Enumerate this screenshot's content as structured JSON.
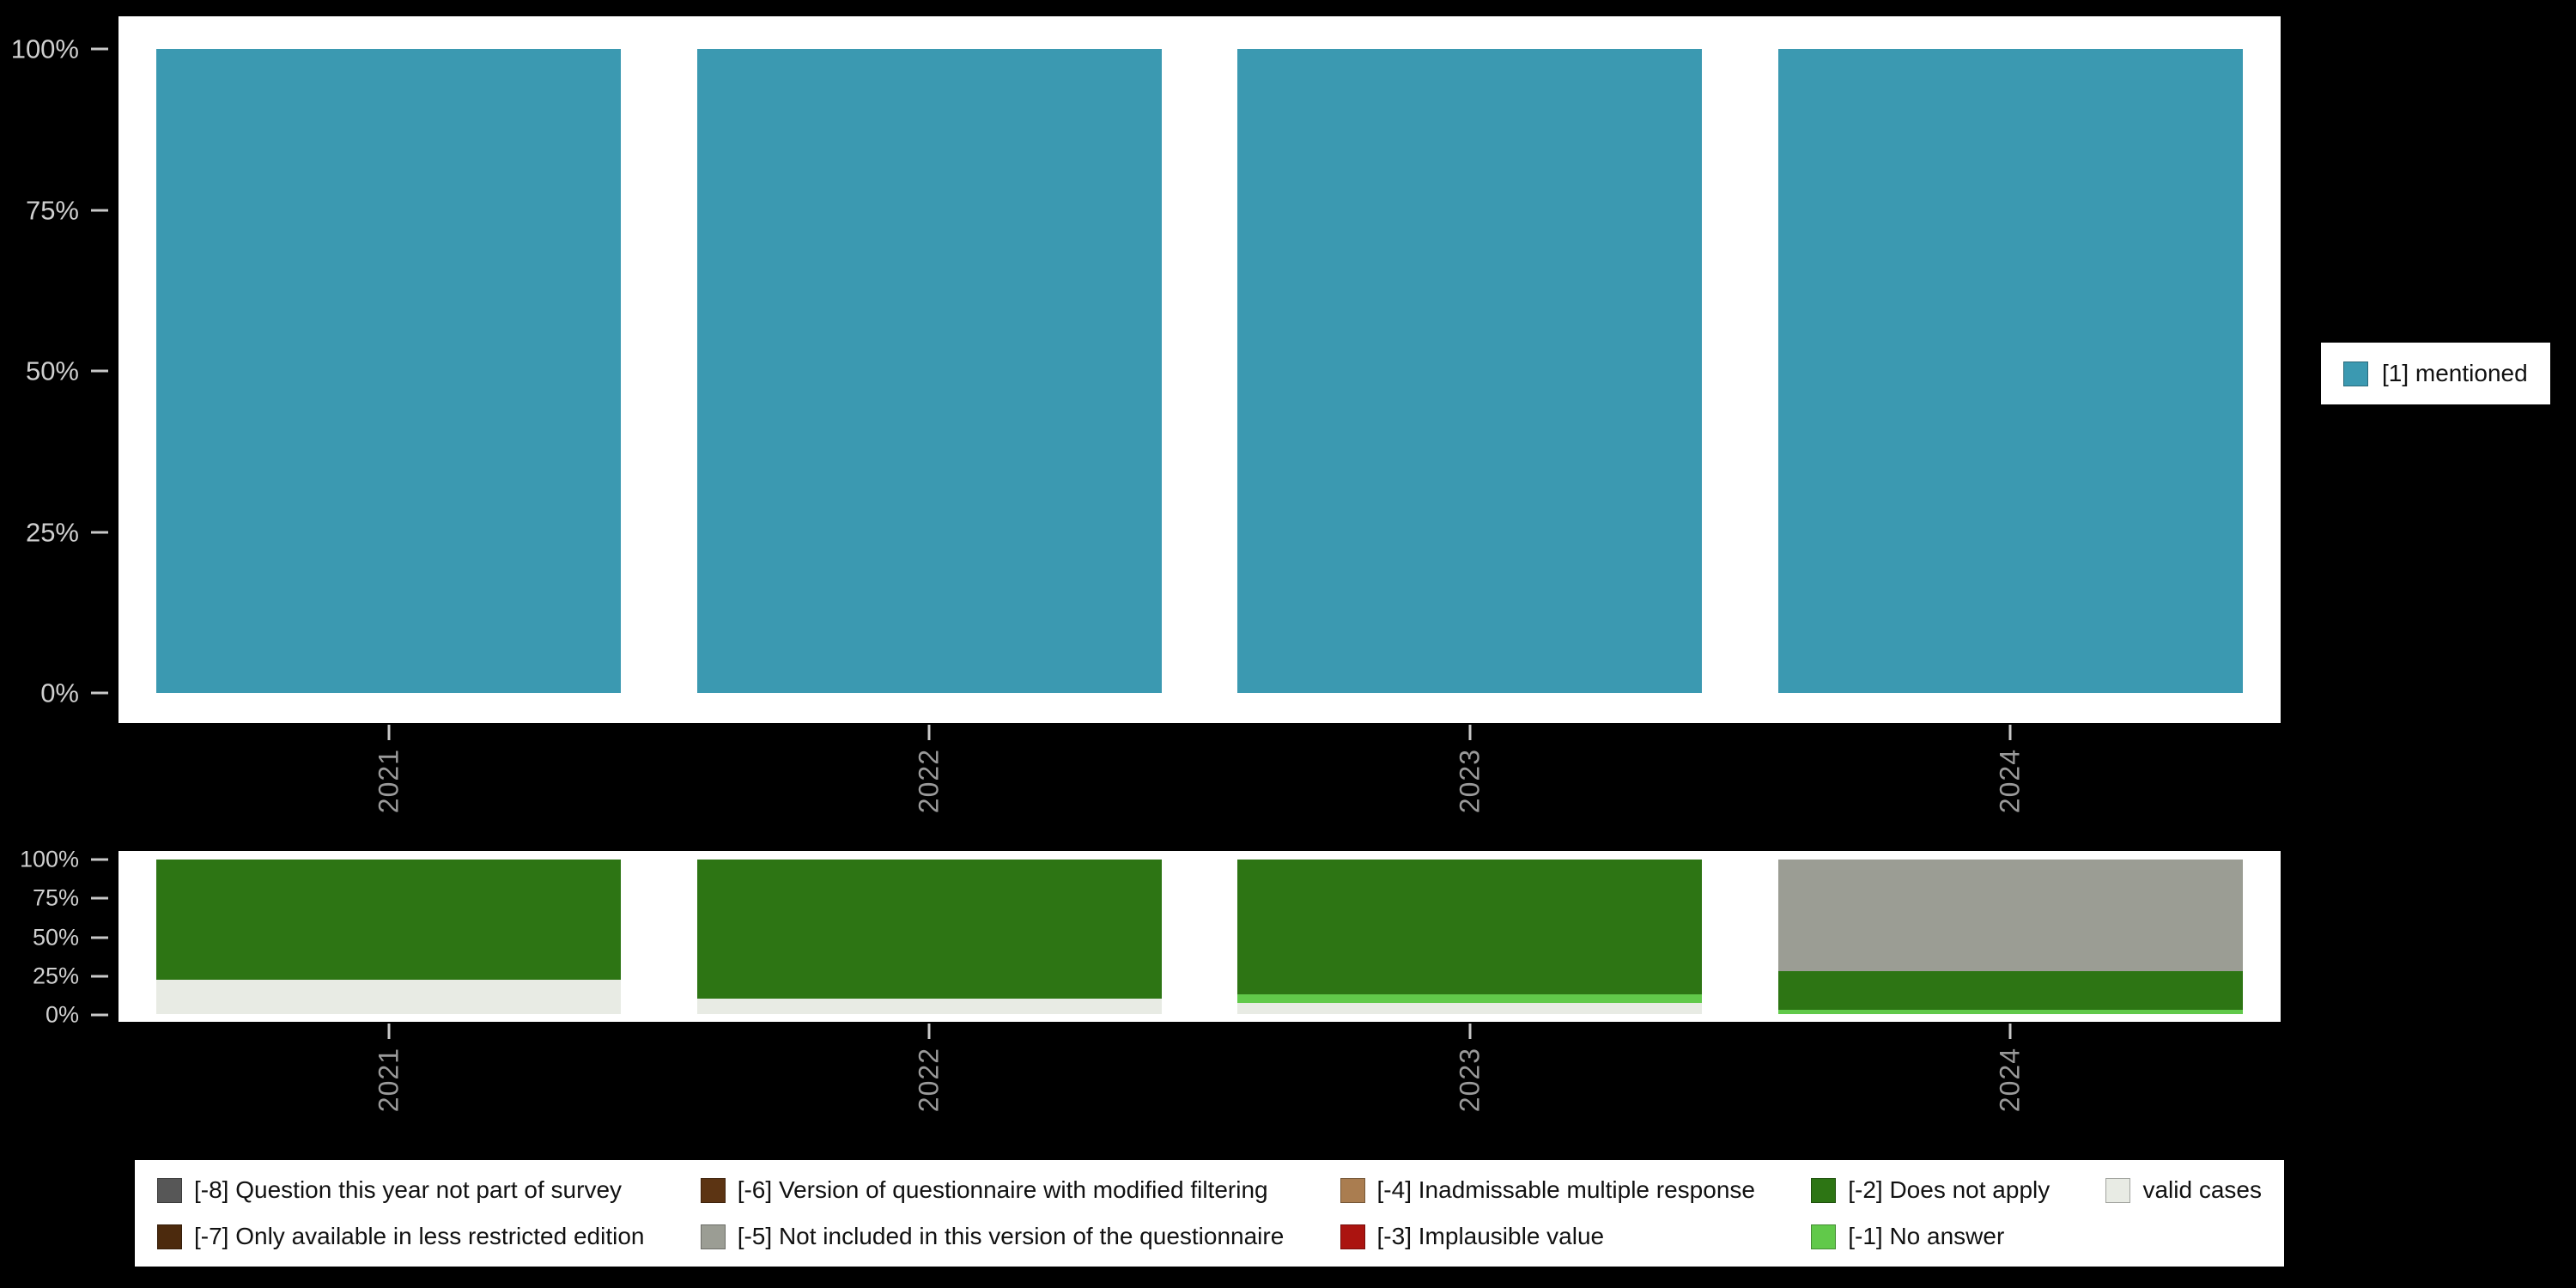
{
  "colors": {
    "background": "#000000",
    "panel_bg": "#ffffff",
    "axis_label": "#cfcfcf",
    "year_label": "#9a9a9a",
    "tick": "#c9c9c9",
    "legend_bg": "#ffffff",
    "legend_text": "#111111"
  },
  "legend_right": {
    "label": "[1] mentioned",
    "color": "#3b99b1"
  },
  "legend_bottom": {
    "items": [
      {
        "label": "[-8] Question this year not part of survey",
        "color": "#575757"
      },
      {
        "label": "[-7] Only available in less restricted edition",
        "color": "#4c2a0d"
      },
      {
        "label": "[-6] Version of questionnaire with modified filtering",
        "color": "#5c3413"
      },
      {
        "label": "[-5] Not included in this version of the questionnaire",
        "color": "#9b9d94"
      },
      {
        "label": "[-4] Inadmissable multiple response",
        "color": "#aa7d50"
      },
      {
        "label": "[-3] Implausible value",
        "color": "#ab1410"
      },
      {
        "label": "[-2] Does not apply",
        "color": "#2d7514"
      },
      {
        "label": "[-1] No answer",
        "color": "#61c94a"
      },
      {
        "label": "valid cases",
        "color": "#e8ebe4"
      }
    ]
  },
  "chart_data": [
    {
      "type": "bar",
      "title": "",
      "categories": [
        "2021",
        "2022",
        "2023",
        "2024"
      ],
      "series": [
        {
          "name": "[1] mentioned",
          "color": "#3b99b1",
          "values": [
            100,
            100,
            100,
            100
          ]
        }
      ],
      "xlabel": "",
      "ylabel": "",
      "ylim": [
        0,
        100
      ],
      "y_tick_labels": [
        "0%",
        "25%",
        "50%",
        "75%",
        "100%"
      ],
      "grid": false,
      "legend_position": "right"
    },
    {
      "type": "stacked-bar",
      "title": "",
      "categories": [
        "2021",
        "2022",
        "2023",
        "2024"
      ],
      "series": [
        {
          "name": "valid cases",
          "color": "#e8ebe4",
          "values": [
            22,
            10,
            7,
            0
          ]
        },
        {
          "name": "[-1] No answer",
          "color": "#61c94a",
          "values": [
            0,
            0,
            6,
            3
          ]
        },
        {
          "name": "[-2] Does not apply",
          "color": "#2d7514",
          "values": [
            78,
            90,
            87,
            25
          ]
        },
        {
          "name": "[-5] Not included in this version of the questionnaire",
          "color": "#9b9d94",
          "values": [
            0,
            0,
            0,
            72
          ]
        }
      ],
      "xlabel": "",
      "ylabel": "",
      "ylim": [
        0,
        100
      ],
      "y_tick_labels": [
        "0%",
        "25%",
        "50%",
        "75%",
        "100%"
      ],
      "grid": false,
      "legend_position": "bottom"
    }
  ]
}
